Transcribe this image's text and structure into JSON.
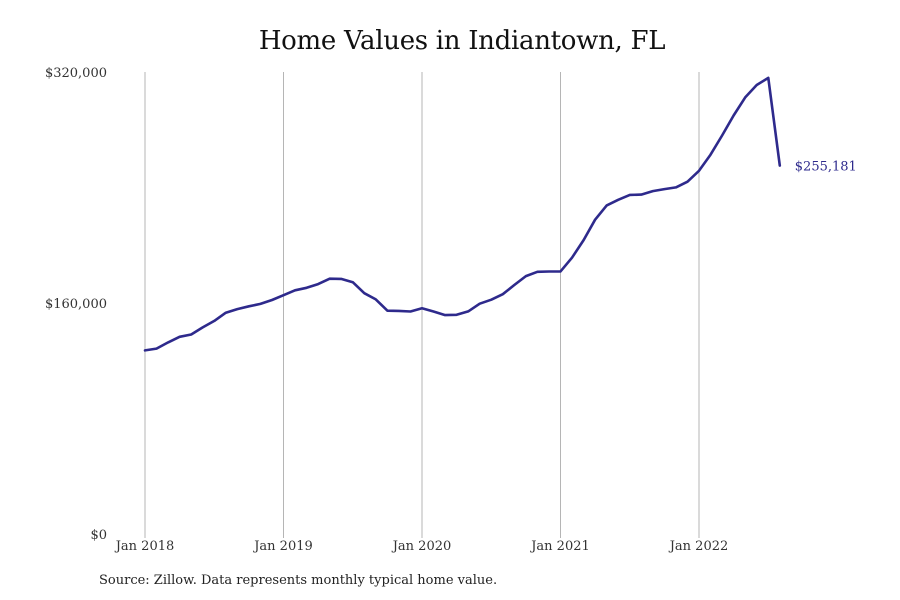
{
  "chart_data": {
    "type": "line",
    "title": "Home Values in Indiantown, FL",
    "xlabel": "",
    "ylabel": "",
    "ylim": [
      0,
      320000
    ],
    "y_ticks": [
      0,
      160000,
      320000
    ],
    "y_tick_labels": [
      "$0",
      "$160,000",
      "$320,000"
    ],
    "x_ticks": [
      "2018-01",
      "2019-01",
      "2020-01",
      "2021-01",
      "2022-01"
    ],
    "x_tick_labels": [
      "Jan 2018",
      "Jan 2019",
      "Jan 2020",
      "Jan 2021",
      "Jan 2022"
    ],
    "grid": "vertical",
    "legend": "none",
    "series": [
      {
        "color": "#2e2a8c",
        "x": [
          "2018-01",
          "2018-02",
          "2018-03",
          "2018-04",
          "2018-05",
          "2018-06",
          "2018-07",
          "2018-08",
          "2018-09",
          "2018-10",
          "2018-11",
          "2018-12",
          "2019-01",
          "2019-02",
          "2019-03",
          "2019-04",
          "2019-05",
          "2019-06",
          "2019-07",
          "2019-08",
          "2019-09",
          "2019-10",
          "2019-11",
          "2019-12",
          "2020-01",
          "2020-02",
          "2020-03",
          "2020-04",
          "2020-05",
          "2020-06",
          "2020-07",
          "2020-08",
          "2020-09",
          "2020-10",
          "2020-11",
          "2020-12",
          "2021-01",
          "2021-02",
          "2021-03",
          "2021-04",
          "2021-05",
          "2021-06",
          "2021-07",
          "2021-08",
          "2021-09",
          "2021-10",
          "2021-11",
          "2021-12",
          "2022-01",
          "2022-02",
          "2022-03",
          "2022-04",
          "2022-05",
          "2022-06",
          "2022-07",
          "2022-08"
        ],
        "values": [
          127200,
          128400,
          132700,
          136600,
          138200,
          143100,
          147600,
          153300,
          155800,
          157700,
          159400,
          162100,
          165400,
          168800,
          170500,
          173100,
          176800,
          176700,
          174400,
          166800,
          162500,
          154700,
          154500,
          154100,
          156400,
          154100,
          151600,
          151800,
          154200,
          159500,
          162300,
          166100,
          172500,
          178600,
          181600,
          181800,
          181900,
          191400,
          203600,
          217700,
          227600,
          231500,
          234900,
          235100,
          237500,
          238900,
          240100,
          244000,
          251600,
          262700,
          276000,
          289900,
          302400,
          311000,
          315900,
          255181
        ]
      }
    ],
    "end_label": "$255,181",
    "source": "Source: Zillow. Data represents monthly typical home value."
  }
}
